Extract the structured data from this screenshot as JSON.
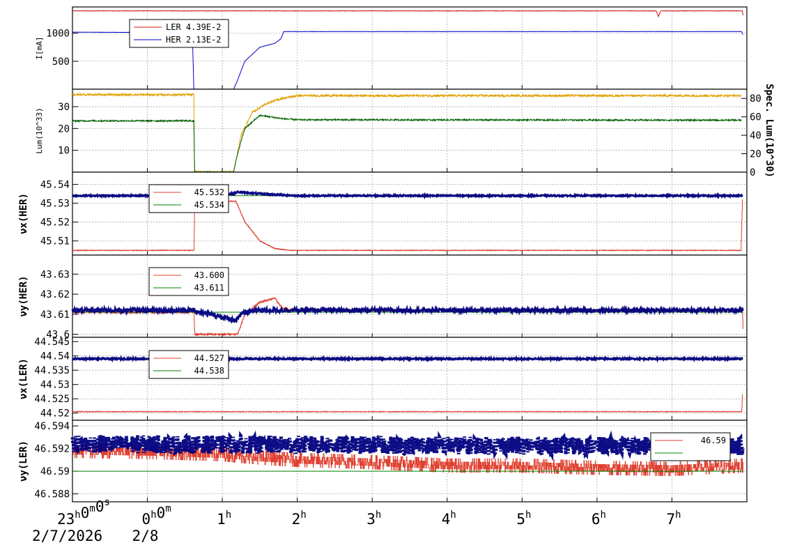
{
  "chart_data": [
    {
      "type": "line",
      "panel": "current",
      "ylabel": "I[mA]",
      "ylim": [
        0,
        1470
      ],
      "yticks": [
        500,
        1000
      ],
      "legend": [
        {
          "label": "LER  4.39E-2",
          "color": "#d01010"
        },
        {
          "label": "HER  2.13E-2",
          "color": "#0000c8"
        }
      ],
      "series": [
        {
          "name": "LER",
          "color": "#d01010",
          "x": [
            -1.0,
            6.79,
            6.82,
            6.85,
            7.94,
            7.95
          ],
          "y": [
            1400,
            1400,
            1300,
            1400,
            1400,
            1300
          ]
        },
        {
          "name": "HER",
          "color": "#0000c8",
          "x": [
            -1.0,
            0.6,
            0.62,
            1.15,
            1.2,
            1.3,
            1.5,
            1.7,
            1.78,
            1.82,
            2.0,
            7.93,
            7.95
          ],
          "y": [
            1020,
            1010,
            0,
            0,
            150,
            500,
            750,
            820,
            900,
            1030,
            1030,
            1030,
            970
          ]
        }
      ]
    },
    {
      "type": "line",
      "panel": "luminosity",
      "ylabel": "Lum(10^33)",
      "ylim": [
        0,
        38
      ],
      "yticks": [
        10,
        20,
        30
      ],
      "y2label": "Spec. Lum(10^30)",
      "y2lim": [
        0,
        90
      ],
      "y2ticks": [
        0,
        20,
        40,
        60,
        80
      ],
      "series": [
        {
          "name": "Spec. Lum",
          "color": "#e0a000",
          "axis": "right",
          "x": [
            -1.0,
            0.62,
            0.63,
            1.15,
            1.25,
            1.4,
            1.6,
            1.8,
            2.0,
            7.93
          ],
          "y": [
            84,
            84,
            0,
            0,
            40,
            65,
            75,
            80,
            83,
            83
          ]
        },
        {
          "name": "Lum",
          "color": "#006000",
          "x": [
            -1.0,
            0.62,
            0.63,
            1.15,
            1.2,
            1.3,
            1.5,
            1.8,
            2.0,
            7.93
          ],
          "y": [
            23.5,
            23.5,
            0,
            0,
            8,
            20,
            26,
            24.5,
            24,
            23.8
          ]
        }
      ]
    },
    {
      "type": "line",
      "panel": "nux-her",
      "ylabel": "νx(HER)",
      "ylim": [
        45.5025,
        45.5465
      ],
      "yticks": [
        "45.51",
        "45.52",
        "45.53",
        "45.54"
      ],
      "legend": [
        {
          "label": "45.532",
          "color": "#e04030"
        },
        {
          "label": "45.534",
          "color": "#008000"
        }
      ],
      "series": [
        {
          "name": "45.532",
          "color": "#e04030",
          "x": [
            -1.0,
            0.62,
            0.63,
            1.18,
            1.3,
            1.5,
            1.7,
            1.9,
            2.1,
            7.92,
            7.94
          ],
          "y": [
            45.505,
            45.505,
            45.532,
            45.531,
            45.52,
            45.51,
            45.506,
            45.505,
            45.505,
            45.505,
            45.532
          ]
        },
        {
          "name": "45.534",
          "color": "#008000",
          "x": [
            -1.0,
            7.95
          ],
          "y": [
            45.534,
            45.534
          ]
        },
        {
          "name": "measured",
          "color": "#000080",
          "x": [
            -1.0,
            0.6,
            1.15,
            1.2,
            1.5,
            2.0,
            7.95
          ],
          "y": [
            45.534,
            45.534,
            45.535,
            45.536,
            45.535,
            45.534,
            45.534
          ]
        }
      ]
    },
    {
      "type": "line",
      "panel": "nuy-her",
      "ylabel": "νy(HER)",
      "ylim": [
        43.5985,
        43.6395
      ],
      "yticks": [
        "43.6",
        "43.61",
        "43.62",
        "43.63"
      ],
      "legend": [
        {
          "label": "43.600",
          "color": "#e04030"
        },
        {
          "label": "43.611",
          "color": "#008000"
        }
      ],
      "series": [
        {
          "name": "43.600",
          "color": "#e04030",
          "x": [
            -1.0,
            0.62,
            0.63,
            1.2,
            1.3,
            1.5,
            1.7,
            1.8,
            2.0,
            7.94,
            7.95
          ],
          "y": [
            43.611,
            43.611,
            43.6,
            43.6,
            43.61,
            43.616,
            43.618,
            43.613,
            43.612,
            43.612,
            43.6
          ]
        },
        {
          "name": "43.611",
          "color": "#008000",
          "x": [
            -1.0,
            7.95
          ],
          "y": [
            43.611,
            43.611
          ]
        },
        {
          "name": "measured",
          "color": "#000080",
          "x": [
            -1.0,
            0.6,
            1.18,
            1.22,
            1.3,
            1.5,
            1.8,
            7.95
          ],
          "y": [
            43.612,
            43.612,
            43.607,
            43.609,
            43.611,
            43.612,
            43.612,
            43.612
          ]
        }
      ]
    },
    {
      "type": "line",
      "panel": "nux-ler",
      "ylabel": "νx(LER)",
      "ylim": [
        44.5175,
        44.5465
      ],
      "yticks": [
        "44.52",
        "44.525",
        "44.53",
        "44.535",
        "44.54",
        "44.545"
      ],
      "legend": [
        {
          "label": "44.527",
          "color": "#e04030"
        },
        {
          "label": "44.538",
          "color": "#008000"
        }
      ],
      "series": [
        {
          "name": "44.527",
          "color": "#e04030",
          "x": [
            -1.0,
            7.93,
            7.94
          ],
          "y": [
            44.5205,
            44.5205,
            44.5265
          ]
        },
        {
          "name": "44.538",
          "color": "#008000",
          "x": [
            -1.0,
            7.95
          ],
          "y": [
            44.5388,
            44.5388
          ]
        },
        {
          "name": "measured",
          "color": "#000080",
          "x": [
            -1.0,
            7.95
          ],
          "y": [
            44.539,
            44.539
          ]
        }
      ]
    },
    {
      "type": "scatter",
      "panel": "nuy-ler",
      "ylabel": "νy(LER)",
      "ylim": [
        46.5873,
        46.5945
      ],
      "yticks": [
        "46.588",
        "46.59",
        "46.592",
        "46.594"
      ],
      "legend": [
        {
          "label": "46.59",
          "color": "#e04030"
        },
        {
          "label": "",
          "color": "#008000"
        }
      ],
      "series": [
        {
          "name": "46.59",
          "color": "#e04030",
          "x": [
            -1.0,
            0.0,
            1.0,
            1.5,
            2.0,
            3.0,
            4.0,
            5.0,
            6.0,
            7.0,
            7.95
          ],
          "y": [
            46.5918,
            46.5917,
            46.5915,
            46.5912,
            46.591,
            46.5908,
            46.5905,
            46.5905,
            46.5903,
            46.5902,
            46.5905
          ]
        },
        {
          "name": "green",
          "color": "#008000",
          "x": [
            -1.0,
            7.95
          ],
          "y": [
            46.59,
            46.59
          ]
        },
        {
          "name": "measured",
          "color": "#000080",
          "x": [
            -1.0,
            7.95
          ],
          "y": [
            46.5924,
            46.5922
          ]
        }
      ]
    }
  ],
  "x_axis": {
    "range": [
      -1.0,
      8.0
    ],
    "ticks": [
      {
        "x": -1.0,
        "label": "23",
        "label_sup": "h",
        "label2": "0",
        "label2_sup": "m",
        "label3": "0",
        "label3_sup": "s",
        "date": "2/7/2026"
      },
      {
        "x": 0.0,
        "label": "0",
        "label_sup": "h",
        "label2": "0",
        "label2_sup": "m",
        "date": "2/8"
      },
      {
        "x": 1.0,
        "label": "1",
        "label_sup": "h"
      },
      {
        "x": 2.0,
        "label": "2",
        "label_sup": "h"
      },
      {
        "x": 3.0,
        "label": "3",
        "label_sup": "h"
      },
      {
        "x": 4.0,
        "label": "4",
        "label_sup": "h"
      },
      {
        "x": 5.0,
        "label": "5",
        "label_sup": "h"
      },
      {
        "x": 6.0,
        "label": "6",
        "label_sup": "h"
      },
      {
        "x": 7.0,
        "label": "7",
        "label_sup": "h"
      }
    ]
  }
}
